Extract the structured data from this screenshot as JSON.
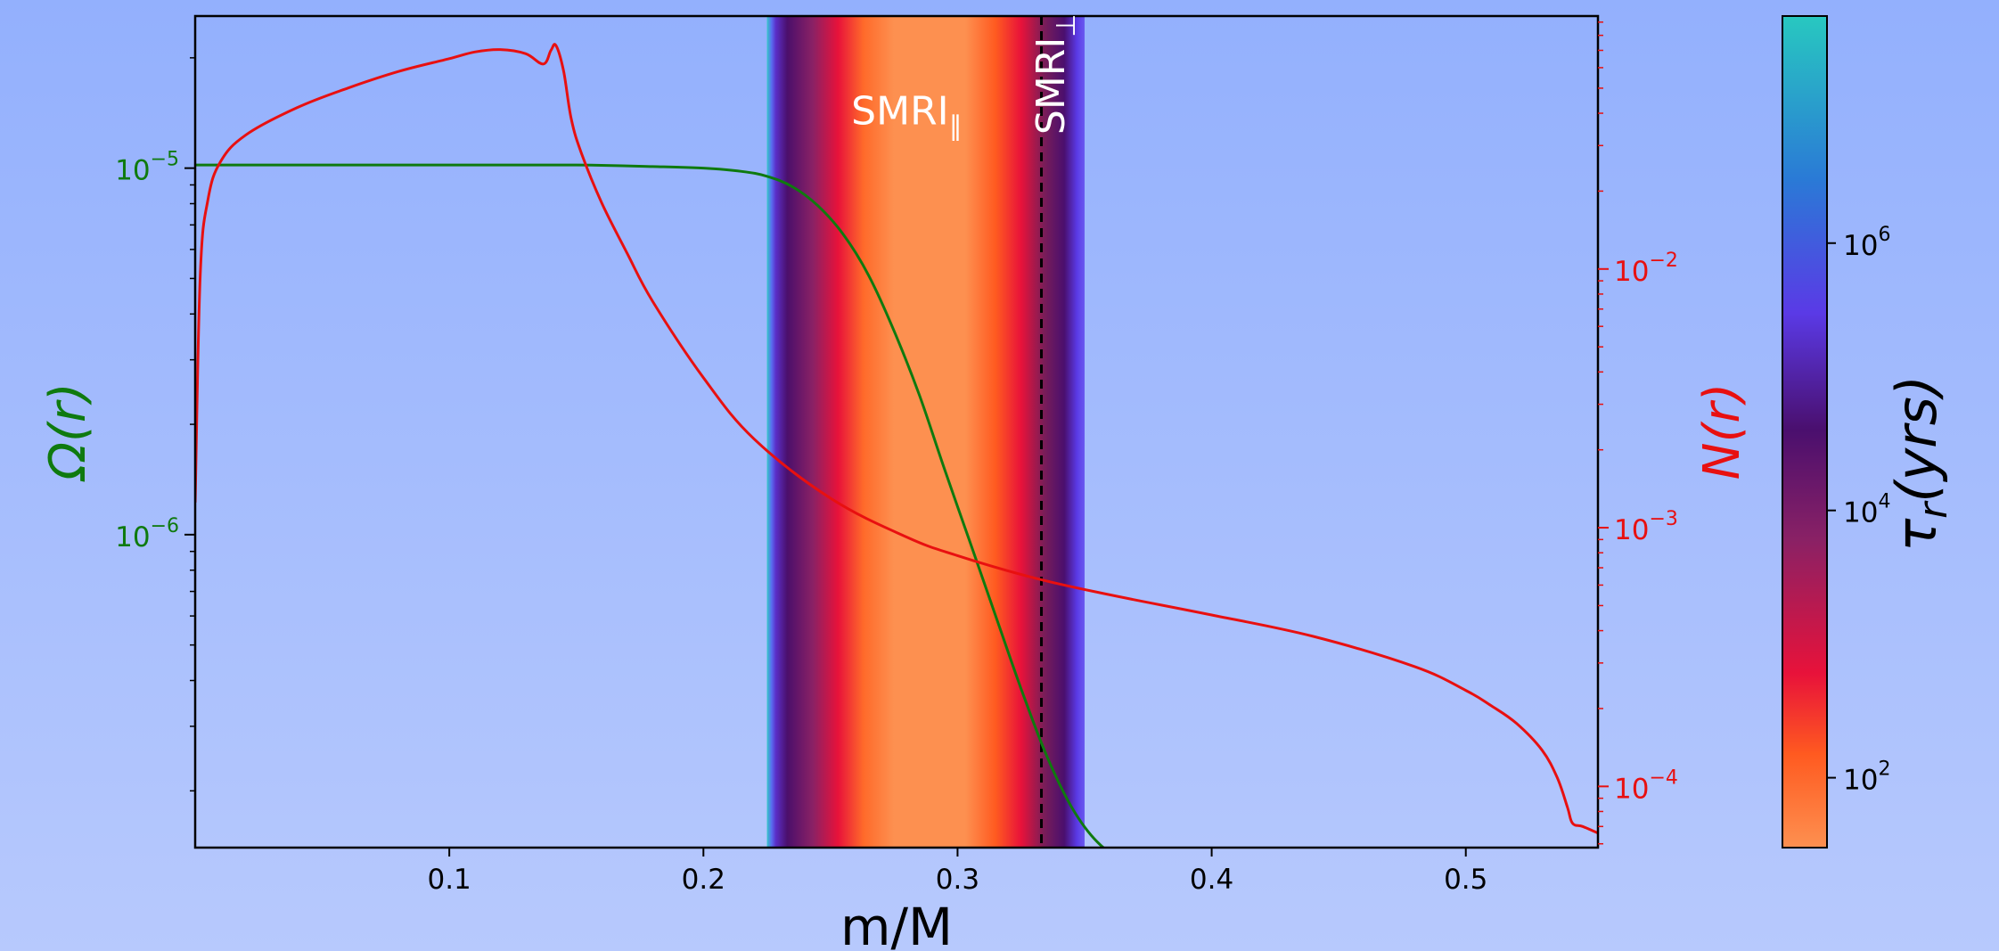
{
  "chart_data": {
    "type": "line",
    "xlabel": "m/M",
    "xlim": [
      0.0,
      0.552
    ],
    "x_ticks": [
      "0.1",
      "0.2",
      "0.3",
      "0.4",
      "0.5"
    ],
    "x_tick_values": [
      0.1,
      0.2,
      0.3,
      0.4,
      0.5
    ],
    "left_axis": {
      "label": "Ω(r)",
      "color": "#0f7a0f",
      "scale": "log",
      "ylim": [
        1.4e-07,
        2.6e-05
      ],
      "tick_values": [
        1e-05,
        1e-06
      ],
      "tick_labels": [
        {
          "base": "10",
          "exp": "−5"
        },
        {
          "base": "10",
          "exp": "−6"
        }
      ]
    },
    "right_axis": {
      "label": "N(r)",
      "color": "#e81010",
      "scale": "log",
      "ylim": [
        5.8e-05,
        0.095
      ],
      "tick_values": [
        0.01,
        0.001,
        0.0001
      ],
      "tick_labels": [
        {
          "base": "10",
          "exp": "−2"
        },
        {
          "base": "10",
          "exp": "−3"
        },
        {
          "base": "10",
          "exp": "−4"
        }
      ]
    },
    "series": [
      {
        "name": "Ω(r)",
        "axis": "left",
        "color": "#0f7a0f",
        "x": [
          0.0,
          0.05,
          0.1,
          0.15,
          0.18,
          0.2,
          0.215,
          0.225,
          0.235,
          0.245,
          0.255,
          0.265,
          0.275,
          0.285,
          0.295,
          0.305,
          0.315,
          0.325,
          0.335,
          0.345,
          0.355,
          0.365,
          0.375,
          0.385,
          0.395,
          0.41,
          0.45,
          0.5,
          0.552
        ],
        "y": [
          1.02e-05,
          1.02e-05,
          1.02e-05,
          1.02e-05,
          1.01e-05,
          1e-05,
          9.8e-06,
          9.5e-06,
          8.9e-06,
          7.9e-06,
          6.6e-06,
          5.1e-06,
          3.6e-06,
          2.4e-06,
          1.5e-06,
          9.5e-07,
          6e-07,
          3.8e-07,
          2.5e-07,
          1.8e-07,
          1.45e-07,
          1.3e-07,
          1.25e-07,
          1.22e-07,
          1.21e-07,
          1.2e-07,
          1.2e-07,
          1.2e-07,
          1.2e-07
        ]
      },
      {
        "name": "N(r)",
        "axis": "right",
        "color": "#e81010",
        "x": [
          0.0,
          0.002,
          0.005,
          0.01,
          0.02,
          0.04,
          0.06,
          0.08,
          0.1,
          0.11,
          0.12,
          0.13,
          0.137,
          0.14,
          0.142,
          0.145,
          0.148,
          0.152,
          0.16,
          0.17,
          0.18,
          0.2,
          0.22,
          0.25,
          0.28,
          0.3,
          0.33,
          0.36,
          0.4,
          0.44,
          0.48,
          0.5,
          0.51,
          0.52,
          0.53,
          0.536,
          0.54,
          0.542,
          0.546,
          0.552
        ],
        "y": [
          0.00125,
          0.0095,
          0.0185,
          0.026,
          0.033,
          0.042,
          0.05,
          0.058,
          0.065,
          0.069,
          0.0705,
          0.068,
          0.062,
          0.07,
          0.073,
          0.058,
          0.038,
          0.028,
          0.018,
          0.0115,
          0.0075,
          0.0038,
          0.0022,
          0.0013,
          0.00092,
          0.00078,
          0.00064,
          0.00055,
          0.00046,
          0.00038,
          0.00029,
          0.000235,
          0.000205,
          0.000175,
          0.000138,
          0.000108,
          8.3e-05,
          7.2e-05,
          7e-05,
          6.6e-05
        ]
      }
    ],
    "band": {
      "x_range": [
        0.225,
        0.35
      ],
      "stops": [
        {
          "x": 0.225,
          "color": "#33c8c8"
        },
        {
          "x": 0.2268,
          "color": "#5a6cf0"
        },
        {
          "x": 0.2285,
          "color": "#5a2fc8"
        },
        {
          "x": 0.233,
          "color": "#4b0f6b"
        },
        {
          "x": 0.243,
          "color": "#8a2165"
        },
        {
          "x": 0.253,
          "color": "#e8123a"
        },
        {
          "x": 0.263,
          "color": "#ff6a2a"
        },
        {
          "x": 0.275,
          "color": "#fd9050"
        },
        {
          "x": 0.303,
          "color": "#fd9050"
        },
        {
          "x": 0.315,
          "color": "#ff5a20"
        },
        {
          "x": 0.325,
          "color": "#e8123a"
        },
        {
          "x": 0.334,
          "color": "#7a1d58"
        },
        {
          "x": 0.342,
          "color": "#4a0f6e"
        },
        {
          "x": 0.347,
          "color": "#5a3ae6"
        },
        {
          "x": 0.35,
          "color": "#6a5af0"
        }
      ]
    },
    "vline": {
      "x": 0.333,
      "style": "dashed",
      "color": "#000000"
    },
    "annotations": [
      {
        "text": "SMRI",
        "sub": "∥",
        "x": 0.28,
        "y_frac": 0.87,
        "rotate": 0
      },
      {
        "text": "SMRI",
        "sub": "⊥",
        "x": 0.342,
        "y_frac": 0.93,
        "rotate": -90
      }
    ],
    "colorbar": {
      "label": "τ",
      "label_sub": "r",
      "label_rest": "(yrs)",
      "scale": "log",
      "range": [
        30,
        50000000
      ],
      "tick_values": [
        1000000,
        10000,
        100
      ],
      "tick_labels": [
        {
          "base": "10",
          "exp": "6"
        },
        {
          "base": "10",
          "exp": "4"
        },
        {
          "base": "10",
          "exp": "2"
        }
      ],
      "stops": [
        {
          "v": 30,
          "color": "#fd9050"
        },
        {
          "v": 150,
          "color": "#ff5a20"
        },
        {
          "v": 600,
          "color": "#e8123a"
        },
        {
          "v": 6000,
          "color": "#8a2165"
        },
        {
          "v": 40000,
          "color": "#4a0f6e"
        },
        {
          "v": 300000,
          "color": "#5a3ae6"
        },
        {
          "v": 3000000,
          "color": "#2a7ad6"
        },
        {
          "v": 50000000,
          "color": "#28c8c0"
        }
      ]
    },
    "grid": false
  }
}
